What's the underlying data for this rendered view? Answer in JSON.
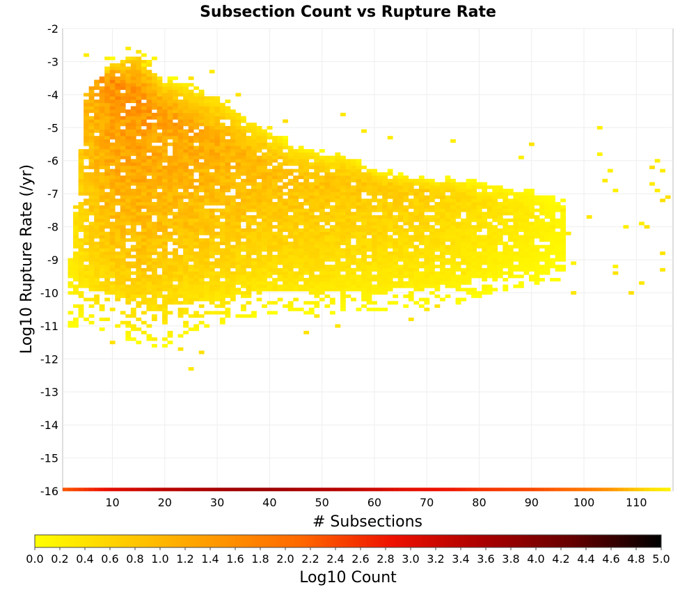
{
  "chart_data": {
    "type": "heatmap",
    "title": "Subsection Count vs Rupture Rate",
    "xlabel": "# Subsections",
    "ylabel": "Log10 Rupture Rate (/yr)",
    "colorbar_label": "Log10 Count",
    "xlim": [
      0.5,
      117
    ],
    "ylim": [
      -16,
      -2
    ],
    "x_ticks": [
      10,
      20,
      30,
      40,
      50,
      60,
      70,
      80,
      90,
      100,
      110
    ],
    "y_ticks": [
      -2,
      -3,
      -4,
      -5,
      -6,
      -7,
      -8,
      -9,
      -10,
      -11,
      -12,
      -13,
      -14,
      -15,
      -16
    ],
    "colorbar_ticks": [
      "0.0",
      "0.2",
      "0.4",
      "0.6",
      "0.8",
      "1.0",
      "1.2",
      "1.4",
      "1.6",
      "1.8",
      "2.0",
      "2.2",
      "2.4",
      "2.6",
      "2.8",
      "3.0",
      "3.2",
      "3.4",
      "3.6",
      "3.8",
      "4.0",
      "4.2",
      "4.4",
      "4.6",
      "4.8",
      "5.0"
    ],
    "colorbar_range": [
      0,
      5
    ],
    "colormap": [
      "#ffff00",
      "#ffcc00",
      "#ff9900",
      "#ff6600",
      "#ee1100",
      "#aa0000",
      "#660000",
      "#000000"
    ],
    "grid": true,
    "bin_size": {
      "x": 1,
      "y": 0.1
    },
    "bottom_row": {
      "y": -16,
      "points": [
        [
          1,
          2.3
        ],
        [
          5,
          2.6
        ],
        [
          10,
          3.0
        ],
        [
          15,
          3.2
        ],
        [
          20,
          3.4
        ],
        [
          25,
          3.5
        ],
        [
          30,
          3.6
        ],
        [
          35,
          3.7
        ],
        [
          40,
          3.7
        ],
        [
          45,
          3.6
        ],
        [
          50,
          3.5
        ],
        [
          55,
          3.4
        ],
        [
          60,
          3.2
        ],
        [
          65,
          3.0
        ],
        [
          70,
          2.9
        ],
        [
          75,
          2.8
        ],
        [
          80,
          2.6
        ],
        [
          85,
          2.5
        ],
        [
          90,
          2.4
        ],
        [
          95,
          2.2
        ],
        [
          100,
          1.9
        ],
        [
          105,
          1.5
        ],
        [
          110,
          0.8
        ],
        [
          113,
          0.4
        ],
        [
          116,
          0.2
        ]
      ]
    },
    "density_profile": [
      [
        2,
        -9.0,
        -3.5,
        -11.0,
        0.6
      ],
      [
        5,
        -4.0,
        -3.0,
        -11.0,
        1.2
      ],
      [
        10,
        -2.9,
        -3.6,
        -11.2,
        1.6
      ],
      [
        15,
        -2.6,
        -4.0,
        -11.5,
        1.6
      ],
      [
        20,
        -3.5,
        -4.6,
        -11.6,
        1.4
      ],
      [
        25,
        -3.6,
        -5.0,
        -11.2,
        1.3
      ],
      [
        30,
        -3.9,
        -5.4,
        -11.0,
        1.2
      ],
      [
        35,
        -4.5,
        -5.8,
        -10.8,
        1.1
      ],
      [
        40,
        -5.0,
        -6.2,
        -10.6,
        1.0
      ],
      [
        45,
        -5.5,
        -6.4,
        -10.6,
        0.95
      ],
      [
        50,
        -5.7,
        -6.5,
        -10.6,
        0.9
      ],
      [
        55,
        -5.8,
        -6.6,
        -10.5,
        0.85
      ],
      [
        60,
        -6.2,
        -6.7,
        -10.5,
        0.8
      ],
      [
        65,
        -6.4,
        -6.8,
        -10.4,
        0.75
      ],
      [
        70,
        -6.5,
        -6.9,
        -10.4,
        0.7
      ],
      [
        75,
        -6.5,
        -7.0,
        -10.3,
        0.6
      ],
      [
        80,
        -6.6,
        -7.2,
        -10.1,
        0.5
      ],
      [
        85,
        -6.7,
        -7.4,
        -9.9,
        0.4
      ],
      [
        90,
        -6.8,
        -7.6,
        -9.8,
        0.3
      ],
      [
        95,
        -7.2,
        -8.0,
        -9.6,
        0.15
      ]
    ],
    "sparse_cells": [
      [
        103,
        -5.0
      ],
      [
        103,
        -5.8
      ],
      [
        104,
        -6.6
      ],
      [
        105,
        -6.3
      ],
      [
        106,
        -6.9
      ],
      [
        101,
        -7.7
      ],
      [
        108,
        -8.0
      ],
      [
        111,
        -7.9
      ],
      [
        112,
        -8.0
      ],
      [
        113,
        -6.2
      ],
      [
        114,
        -6.0
      ],
      [
        115,
        -6.3
      ],
      [
        113,
        -6.7
      ],
      [
        114,
        -6.9
      ],
      [
        115,
        -7.2
      ],
      [
        116,
        -7.1
      ],
      [
        115,
        -8.8
      ],
      [
        115,
        -9.3
      ],
      [
        106,
        -9.2
      ],
      [
        106,
        -9.4
      ],
      [
        111,
        -9.7
      ],
      [
        109,
        -10.0
      ],
      [
        98,
        -9.1
      ],
      [
        98,
        -10.0
      ],
      [
        97,
        -8.2
      ],
      [
        94,
        -8.0
      ],
      [
        96,
        -7.5
      ],
      [
        95,
        -7.4
      ],
      [
        5,
        -2.8
      ],
      [
        9,
        -2.9
      ],
      [
        13,
        -2.6
      ],
      [
        16,
        -3.1
      ],
      [
        18,
        -2.9
      ],
      [
        25,
        -3.5
      ],
      [
        29,
        -3.3
      ],
      [
        34,
        -4.0
      ],
      [
        40,
        -5.0
      ],
      [
        43,
        -4.8
      ],
      [
        54,
        -4.6
      ],
      [
        58,
        -5.1
      ],
      [
        63,
        -5.3
      ],
      [
        75,
        -5.4
      ],
      [
        90,
        -5.5
      ],
      [
        88,
        -5.9
      ],
      [
        79,
        -8.5
      ],
      [
        77,
        -9.4
      ],
      [
        70,
        -10.5
      ],
      [
        72,
        -10.4
      ],
      [
        67,
        -10.8
      ],
      [
        53,
        -11.0
      ],
      [
        49,
        -10.7
      ],
      [
        47,
        -11.2
      ],
      [
        25,
        -12.3
      ],
      [
        27,
        -11.8
      ],
      [
        23,
        -11.7
      ],
      [
        18,
        -11.4
      ],
      [
        10,
        -11.5
      ]
    ]
  }
}
